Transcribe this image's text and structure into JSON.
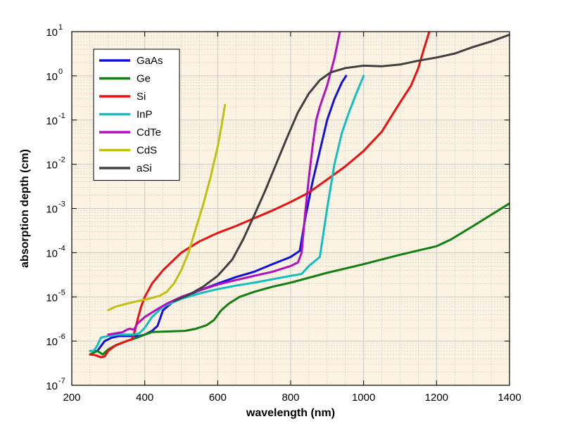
{
  "chart_data": {
    "type": "line",
    "title": "",
    "xlabel": "wavelength (nm)",
    "ylabel": "absorption depth (cm)",
    "xlim": [
      200,
      1400
    ],
    "ylim": [
      1e-07,
      10
    ],
    "yscale": "log",
    "x_ticks": [
      {
        "value": 200,
        "label": "200"
      },
      {
        "value": 400,
        "label": "400"
      },
      {
        "value": 600,
        "label": "600"
      },
      {
        "value": 800,
        "label": "800"
      },
      {
        "value": 1000,
        "label": "1000"
      },
      {
        "value": 1200,
        "label": "1200"
      },
      {
        "value": 1400,
        "label": "1400"
      }
    ],
    "y_ticks": [
      {
        "value": 1e-07,
        "base": "10",
        "exp": "-7"
      },
      {
        "value": 1e-06,
        "base": "10",
        "exp": "-6"
      },
      {
        "value": 1e-05,
        "base": "10",
        "exp": "-5"
      },
      {
        "value": 0.0001,
        "base": "10",
        "exp": "-4"
      },
      {
        "value": 0.001,
        "base": "10",
        "exp": "-3"
      },
      {
        "value": 0.01,
        "base": "10",
        "exp": "-2"
      },
      {
        "value": 0.1,
        "base": "10",
        "exp": "-1"
      },
      {
        "value": 1,
        "base": "10",
        "exp": "0"
      },
      {
        "value": 10,
        "base": "10",
        "exp": "1"
      }
    ],
    "grid": true,
    "legend_position": "top-left",
    "colors": {
      "plot_background": "#fdf3e3",
      "grid": "#c8c8c8",
      "axis": "#000000"
    },
    "series": [
      {
        "name": "GaAs",
        "color": "#1010e0",
        "x": [
          250,
          270,
          290,
          310,
          330,
          350,
          370,
          385,
          400,
          420,
          435,
          450,
          480,
          550,
          600,
          650,
          700,
          750,
          800,
          825,
          840,
          860,
          880,
          900,
          920,
          940,
          952
        ],
        "y": [
          6e-07,
          6e-07,
          1e-06,
          1.2e-06,
          1.3e-06,
          1.3e-06,
          1.3e-06,
          1.3e-06,
          1.4e-06,
          1.7e-06,
          2.2e-06,
          5e-06,
          8e-06,
          1.4e-05,
          2e-05,
          2.8e-05,
          3.7e-05,
          5.5e-05,
          8e-05,
          0.00011,
          0.0006,
          0.004,
          0.02,
          0.1,
          0.3,
          0.7,
          1.0
        ]
      },
      {
        "name": "Ge",
        "color": "#108010",
        "x": [
          250,
          270,
          285,
          300,
          320,
          350,
          380,
          400,
          420,
          460,
          510,
          540,
          570,
          590,
          610,
          630,
          660,
          700,
          750,
          800,
          900,
          1000,
          1100,
          1200,
          1240,
          1300,
          1400
        ],
        "y": [
          5e-07,
          6e-07,
          5e-07,
          6.5e-07,
          8e-07,
          1e-06,
          1.2e-06,
          1.4e-06,
          1.6e-06,
          1.65e-06,
          1.7e-06,
          1.9e-06,
          2.3e-06,
          3e-06,
          5e-06,
          7e-06,
          1e-05,
          1.3e-05,
          1.7e-05,
          2.1e-05,
          3.5e-05,
          5.5e-05,
          9e-05,
          0.00014,
          0.0002,
          0.0004,
          0.0013
        ]
      },
      {
        "name": "Si",
        "color": "#ee1010",
        "x": [
          250,
          265,
          280,
          290,
          300,
          320,
          350,
          365,
          372,
          380,
          390,
          400,
          420,
          450,
          500,
          550,
          600,
          650,
          700,
          750,
          800,
          850,
          900,
          950,
          1000,
          1050,
          1100,
          1130,
          1150,
          1165,
          1180
        ],
        "y": [
          5e-07,
          4.8e-07,
          4.3e-07,
          4.5e-07,
          6e-07,
          8e-07,
          1e-06,
          1.1e-06,
          1.6e-06,
          3e-06,
          6e-06,
          1e-05,
          2e-05,
          4e-05,
          0.0001,
          0.00018,
          0.00028,
          0.0004,
          0.0006,
          0.0009,
          0.0014,
          0.0023,
          0.0045,
          0.009,
          0.02,
          0.055,
          0.25,
          0.6,
          1.5,
          4,
          10
        ]
      },
      {
        "name": "InP",
        "color": "#10c0c0",
        "x": [
          250,
          260,
          270,
          280,
          300,
          330,
          350,
          370,
          385,
          400,
          420,
          450,
          500,
          550,
          600,
          650,
          700,
          750,
          800,
          830,
          850,
          880,
          900,
          920,
          940,
          960,
          980,
          1000
        ],
        "y": [
          6e-07,
          6e-07,
          8e-07,
          1.2e-06,
          1.3e-06,
          1.4e-06,
          1.4e-06,
          1.4e-06,
          1.5e-06,
          2e-06,
          3.5e-06,
          6e-06,
          9e-06,
          1.2e-05,
          1.5e-05,
          1.8e-05,
          2.1e-05,
          2.5e-05,
          3e-05,
          3.3e-05,
          5e-05,
          8e-05,
          0.001,
          0.01,
          0.05,
          0.15,
          0.4,
          1.0
        ]
      },
      {
        "name": "CdTe",
        "color": "#b010c0",
        "x": [
          300,
          320,
          340,
          350,
          360,
          370,
          380,
          400,
          430,
          460,
          500,
          550,
          600,
          650,
          700,
          750,
          800,
          820,
          830,
          840,
          850,
          860,
          870,
          880,
          900,
          920,
          935
        ],
        "y": [
          1.4e-06,
          1.5e-06,
          1.6e-06,
          1.8e-06,
          1.9e-06,
          1.8e-06,
          2.5e-06,
          3.5e-06,
          5e-06,
          7e-06,
          1e-05,
          1.4e-05,
          1.9e-05,
          2.4e-05,
          3e-05,
          3.7e-05,
          5e-05,
          6e-05,
          0.0001,
          0.0008,
          0.005,
          0.025,
          0.1,
          0.2,
          0.6,
          2.5,
          10
        ]
      },
      {
        "name": "CdS",
        "color": "#c0c010",
        "x": [
          300,
          320,
          350,
          380,
          410,
          440,
          460,
          480,
          500,
          520,
          540,
          560,
          580,
          600,
          610,
          620
        ],
        "y": [
          5e-06,
          6e-06,
          7e-06,
          8e-06,
          9e-06,
          1.05e-05,
          1.3e-05,
          2e-05,
          4e-05,
          0.0001,
          0.00035,
          0.0012,
          0.005,
          0.025,
          0.07,
          0.22
        ]
      },
      {
        "name": "aSi",
        "color": "#404040",
        "x": [
          480,
          520,
          560,
          600,
          640,
          670,
          700,
          730,
          760,
          790,
          820,
          850,
          880,
          910,
          950,
          1000,
          1050,
          1100,
          1150,
          1200,
          1250,
          1300,
          1350,
          1400
        ],
        "y": [
          8e-06,
          1.1e-05,
          1.7e-05,
          3e-05,
          7e-05,
          0.0002,
          0.0007,
          0.0025,
          0.01,
          0.04,
          0.15,
          0.4,
          0.8,
          1.2,
          1.5,
          1.7,
          1.65,
          1.8,
          2.2,
          2.6,
          3.2,
          4.5,
          6,
          8.5
        ]
      }
    ]
  }
}
